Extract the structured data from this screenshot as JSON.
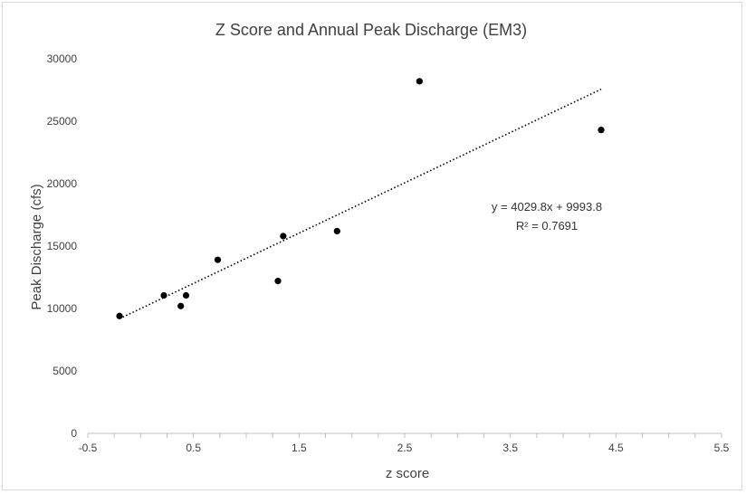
{
  "chart_data": {
    "type": "scatter",
    "title": "Z Score and Annual Peak Discharge (EM3)",
    "xlabel": "z score",
    "ylabel": "Peak Discharge (cfs)",
    "xlim": [
      -0.5,
      5.5
    ],
    "ylim": [
      0,
      30000
    ],
    "x_ticks": [
      "-0.5",
      "0.5",
      "1.5",
      "2.5",
      "3.5",
      "4.5",
      "5.5"
    ],
    "y_ticks": [
      "0",
      "5000",
      "10000",
      "15000",
      "20000",
      "25000",
      "30000"
    ],
    "grid": false,
    "legend": "none",
    "marker_color": "#000000",
    "points": [
      {
        "x": -0.2,
        "y": 9400
      },
      {
        "x": 0.22,
        "y": 11050
      },
      {
        "x": 0.38,
        "y": 10200
      },
      {
        "x": 0.43,
        "y": 11050
      },
      {
        "x": 0.73,
        "y": 13900
      },
      {
        "x": 1.3,
        "y": 12200
      },
      {
        "x": 1.35,
        "y": 15800
      },
      {
        "x": 1.86,
        "y": 16200
      },
      {
        "x": 2.64,
        "y": 28200
      },
      {
        "x": 4.36,
        "y": 24300
      }
    ],
    "trendline": {
      "slope": 4029.8,
      "intercept": 9993.8,
      "x_range": [
        -0.2,
        4.36
      ],
      "style": "dotted",
      "equation_label": "y = 4029.8x + 9993.8",
      "r2_label": "R² = 0.7691"
    }
  }
}
